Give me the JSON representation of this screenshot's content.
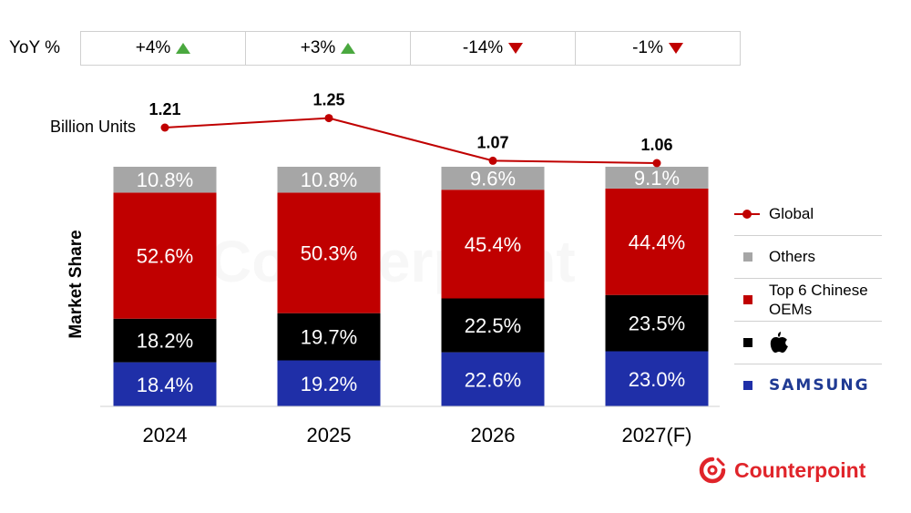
{
  "yoy": {
    "label": "YoY %",
    "items": [
      {
        "text": "+4%",
        "direction": "up"
      },
      {
        "text": "+3%",
        "direction": "up"
      },
      {
        "text": "-14%",
        "direction": "down"
      },
      {
        "text": "-1%",
        "direction": "down"
      }
    ]
  },
  "chart_data": {
    "type": "bar",
    "stacked": true,
    "categories": [
      "2024",
      "2025",
      "2026",
      "2027(F)"
    ],
    "ylabel": "Market Share",
    "series": [
      {
        "name": "SAMSUNG",
        "color": "#1f2fa8",
        "values": [
          18.4,
          19.2,
          22.6,
          23.0
        ],
        "labels": [
          "18.4%",
          "19.2%",
          "22.6%",
          "23.0%"
        ]
      },
      {
        "name": "Apple",
        "color": "#000000",
        "values": [
          18.2,
          19.7,
          22.5,
          23.5
        ],
        "labels": [
          "18.2%",
          "19.7%",
          "22.5%",
          "23.5%"
        ]
      },
      {
        "name": "Top 6 Chinese OEMs",
        "color": "#c00000",
        "values": [
          52.6,
          50.3,
          45.4,
          44.4
        ],
        "labels": [
          "52.6%",
          "50.3%",
          "45.4%",
          "44.4%"
        ]
      },
      {
        "name": "Others",
        "color": "#a6a6a6",
        "values": [
          10.8,
          10.8,
          9.6,
          9.1
        ],
        "labels": [
          "10.8%",
          "10.8%",
          "9.6%",
          "9.1%"
        ]
      }
    ],
    "line": {
      "name": "Global",
      "unit_label": "Billion Units",
      "color": "#c00000",
      "values": [
        1.21,
        1.25,
        1.07,
        1.06
      ],
      "labels": [
        "1.21",
        "1.25",
        "1.07",
        "1.06"
      ]
    },
    "grid": false,
    "legend_position": "right"
  },
  "legend": {
    "global": "Global",
    "others": "Others",
    "chinese_line1": "Top 6 Chinese",
    "chinese_line2": "OEMs",
    "samsung": "SAMSUNG"
  },
  "brand": {
    "name": "Counterpoint",
    "color": "#e0242a"
  },
  "watermark": "Counterpoint"
}
